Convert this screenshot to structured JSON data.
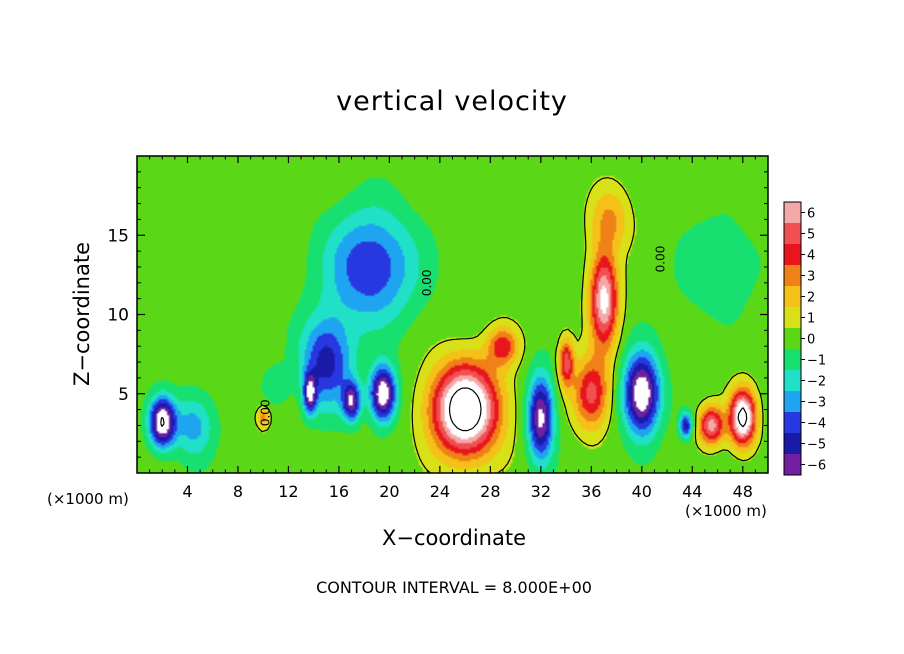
{
  "chart_data": {
    "type": "heatmap",
    "title": "vertical velocity",
    "xlabel": "X−coordinate",
    "ylabel": "Z−coordinate",
    "x_unit_label": "(×1000 m)",
    "x_unit_label_right": "(×1000 m)",
    "footer": "CONTOUR INTERVAL = 8.000E+00",
    "xlim": [
      0,
      50
    ],
    "ylim": [
      0,
      20
    ],
    "x_ticks": [
      4,
      8,
      12,
      16,
      20,
      24,
      28,
      32,
      36,
      40,
      44,
      48
    ],
    "y_ticks": [
      5,
      10,
      15
    ],
    "contour_labels": [
      "0.00",
      "0.00",
      "0.00"
    ],
    "colorbar": {
      "levels": [
        6,
        5,
        4,
        3,
        2,
        1,
        0,
        -1,
        -2,
        -3,
        -4,
        -5,
        -6
      ],
      "colors": [
        "#f5a8a8",
        "#f05050",
        "#e8161c",
        "#f08018",
        "#f5c018",
        "#d8e018",
        "#5ad818",
        "#18e070",
        "#20e0c8",
        "#1ea4f0",
        "#2838e0",
        "#1a1aa8",
        "#7020a0"
      ]
    },
    "background_color": "#55e055",
    "features": [
      {
        "kind": "updraft",
        "x": 26,
        "z": 4,
        "sx": 2.6,
        "sz": 2.8,
        "strength": 10
      },
      {
        "kind": "updraft",
        "x": 37,
        "z": 11,
        "sx": 1.1,
        "sz": 3.0,
        "strength": 7
      },
      {
        "kind": "updraft",
        "x": 36,
        "z": 5,
        "sx": 1.4,
        "sz": 2.2,
        "strength": 5
      },
      {
        "kind": "updraft",
        "x": 34,
        "z": 7,
        "sx": 0.6,
        "sz": 1.5,
        "strength": 5
      },
      {
        "kind": "updraft",
        "x": 37.5,
        "z": 16,
        "sx": 1.6,
        "sz": 2.0,
        "strength": 2.5
      },
      {
        "kind": "updraft",
        "x": 48,
        "z": 3.5,
        "sx": 1.0,
        "sz": 1.7,
        "strength": 9
      },
      {
        "kind": "updraft",
        "x": 45.5,
        "z": 3,
        "sx": 1.0,
        "sz": 1.2,
        "strength": 6
      },
      {
        "kind": "updraft",
        "x": 10,
        "z": 3.5,
        "sx": 0.5,
        "sz": 0.7,
        "strength": 3
      },
      {
        "kind": "updraft",
        "x": 29,
        "z": 8,
        "sx": 1.2,
        "sz": 1.2,
        "strength": 4
      },
      {
        "kind": "downdraft",
        "x": 2,
        "z": 3.2,
        "sx": 1.0,
        "sz": 1.5,
        "strength": 8
      },
      {
        "kind": "downdraft",
        "x": 4.5,
        "z": 3,
        "sx": 1.6,
        "sz": 2.0,
        "strength": 3
      },
      {
        "kind": "downdraft",
        "x": 18.5,
        "z": 13,
        "sx": 3.5,
        "sz": 3.5,
        "strength": 4.5
      },
      {
        "kind": "downdraft",
        "x": 15,
        "z": 7,
        "sx": 2.0,
        "sz": 2.8,
        "strength": 5
      },
      {
        "kind": "downdraft",
        "x": 19.5,
        "z": 5,
        "sx": 1.0,
        "sz": 1.7,
        "strength": 8
      },
      {
        "kind": "downdraft",
        "x": 17,
        "z": 4.5,
        "sx": 0.7,
        "sz": 1.2,
        "strength": 6
      },
      {
        "kind": "downdraft",
        "x": 13.7,
        "z": 5,
        "sx": 0.5,
        "sz": 1.2,
        "strength": 6
      },
      {
        "kind": "downdraft",
        "x": 32,
        "z": 3.5,
        "sx": 1.0,
        "sz": 2.6,
        "strength": 7
      },
      {
        "kind": "downdraft",
        "x": 40,
        "z": 5,
        "sx": 1.4,
        "sz": 2.5,
        "strength": 8
      },
      {
        "kind": "downdraft",
        "x": 43.5,
        "z": 3,
        "sx": 0.5,
        "sz": 0.8,
        "strength": 5
      },
      {
        "kind": "downdraft",
        "x": 46,
        "z": 13,
        "sx": 3.0,
        "sz": 3.0,
        "strength": 1.5
      },
      {
        "kind": "downdraft",
        "x": 11,
        "z": 5.5,
        "sx": 1.0,
        "sz": 1.2,
        "strength": 1.5
      }
    ]
  }
}
